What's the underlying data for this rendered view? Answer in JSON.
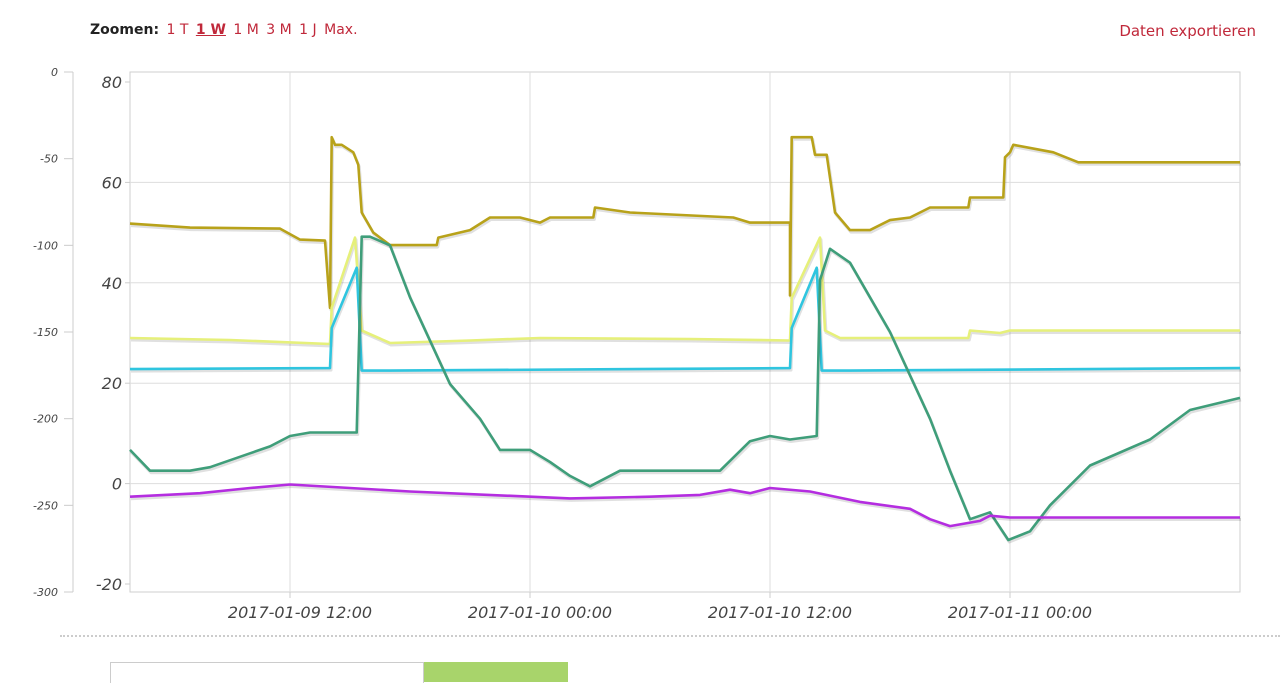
{
  "toolbar": {
    "zoom_label": "Zoomen:",
    "zoom_options": [
      "1 T",
      "1 W",
      "1 M",
      "3 M",
      "1 J",
      "Max."
    ],
    "active_zoom": "1 W",
    "export_label": "Daten exportieren"
  },
  "chart_data": {
    "type": "line",
    "title": "",
    "x_range": [
      "2017-01-09 04:00",
      "2017-01-11 11:30"
    ],
    "x_ticks": [
      "2017-01-09 12:00",
      "2017-01-10 00:00",
      "2017-01-10 12:00",
      "2017-01-11 00:00"
    ],
    "y_left": {
      "range": [
        -20,
        80
      ],
      "ticks": [
        80,
        60,
        40,
        20,
        0,
        -20
      ]
    },
    "y_right": {
      "range": [
        -300,
        0
      ],
      "ticks": [
        0,
        -50,
        -100,
        -150,
        -200,
        -250,
        -300
      ]
    },
    "grid": true,
    "legend": "none",
    "series": [
      {
        "color": "#b8a21a",
        "axis": "left",
        "points": [
          [
            "2017-01-09 04:00",
            51.8
          ],
          [
            "2017-01-09 07:00",
            51.0
          ],
          [
            "2017-01-09 11:30",
            50.8
          ],
          [
            "2017-01-09 12:30",
            48.6
          ],
          [
            "2017-01-09 13:45",
            48.4
          ],
          [
            "2017-01-09 14:00",
            35.0
          ],
          [
            "2017-01-09 14:05",
            69.0
          ],
          [
            "2017-01-09 14:15",
            67.5
          ],
          [
            "2017-01-09 14:35",
            67.5
          ],
          [
            "2017-01-09 15:10",
            66.0
          ],
          [
            "2017-01-09 15:25",
            63.5
          ],
          [
            "2017-01-09 15:35",
            54.0
          ],
          [
            "2017-01-09 16:10",
            50.0
          ],
          [
            "2017-01-09 17:00",
            47.5
          ],
          [
            "2017-01-09 19:20",
            47.5
          ],
          [
            "2017-01-09 19:25",
            49.0
          ],
          [
            "2017-01-09 21:00",
            50.5
          ],
          [
            "2017-01-09 22:00",
            53.0
          ],
          [
            "2017-01-09 23:30",
            53.0
          ],
          [
            "2017-01-10 00:30",
            52.0
          ],
          [
            "2017-01-10 01:00",
            53.0
          ],
          [
            "2017-01-10 03:10",
            53.0
          ],
          [
            "2017-01-10 03:15",
            55.0
          ],
          [
            "2017-01-10 05:00",
            54.0
          ],
          [
            "2017-01-10 10:10",
            53.0
          ],
          [
            "2017-01-10 11:00",
            52.0
          ],
          [
            "2017-01-10 13:00",
            52.0
          ],
          [
            "2017-01-10 13:00",
            37.5
          ],
          [
            "2017-01-10 13:05",
            69.0
          ],
          [
            "2017-01-10 14:05",
            69.0
          ],
          [
            "2017-01-10 14:15",
            65.5
          ],
          [
            "2017-01-10 14:50",
            65.5
          ],
          [
            "2017-01-10 15:15",
            54.0
          ],
          [
            "2017-01-10 16:00",
            50.5
          ],
          [
            "2017-01-10 17:00",
            50.5
          ],
          [
            "2017-01-10 18:00",
            52.5
          ],
          [
            "2017-01-10 19:00",
            53.0
          ],
          [
            "2017-01-10 20:00",
            55.0
          ],
          [
            "2017-01-10 21:55",
            55.0
          ],
          [
            "2017-01-10 22:00",
            57.0
          ],
          [
            "2017-01-10 23:40",
            57.0
          ],
          [
            "2017-01-10 23:45",
            65.0
          ],
          [
            "2017-01-11 00:00",
            66.0
          ],
          [
            "2017-01-11 00:10",
            67.5
          ],
          [
            "2017-01-11 01:30",
            66.5
          ],
          [
            "2017-01-11 02:10",
            66.0
          ],
          [
            "2017-01-11 03:25",
            64.0
          ],
          [
            "2017-01-11 11:30",
            64.0
          ]
        ]
      },
      {
        "color": "#e6f07a",
        "axis": "left",
        "points": [
          [
            "2017-01-09 04:00",
            29.0
          ],
          [
            "2017-01-09 09:00",
            28.6
          ],
          [
            "2017-01-09 14:00",
            27.8
          ],
          [
            "2017-01-09 14:05",
            35.0
          ],
          [
            "2017-01-09 15:15",
            49.0
          ],
          [
            "2017-01-09 15:35",
            30.5
          ],
          [
            "2017-01-09 17:00",
            28.0
          ],
          [
            "2017-01-09 21:00",
            28.5
          ],
          [
            "2017-01-10 00:30",
            29.0
          ],
          [
            "2017-01-10 08:00",
            28.8
          ],
          [
            "2017-01-10 13:00",
            28.5
          ],
          [
            "2017-01-10 13:05",
            37.0
          ],
          [
            "2017-01-10 14:30",
            49.0
          ],
          [
            "2017-01-10 14:45",
            30.5
          ],
          [
            "2017-01-10 15:30",
            29.0
          ],
          [
            "2017-01-10 21:55",
            29.0
          ],
          [
            "2017-01-10 22:00",
            30.5
          ],
          [
            "2017-01-10 23:30",
            30.0
          ],
          [
            "2017-01-11 00:00",
            30.5
          ],
          [
            "2017-01-11 11:30",
            30.5
          ]
        ]
      },
      {
        "color": "#2fc5df",
        "axis": "left",
        "points": [
          [
            "2017-01-09 04:00",
            22.8
          ],
          [
            "2017-01-09 14:00",
            23.0
          ],
          [
            "2017-01-09 14:05",
            31.0
          ],
          [
            "2017-01-09 15:20",
            43.0
          ],
          [
            "2017-01-09 15:35",
            22.5
          ],
          [
            "2017-01-09 17:00",
            22.5
          ],
          [
            "2017-01-10 13:00",
            23.0
          ],
          [
            "2017-01-10 13:05",
            31.0
          ],
          [
            "2017-01-10 14:20",
            43.0
          ],
          [
            "2017-01-10 14:35",
            22.5
          ],
          [
            "2017-01-10 16:00",
            22.5
          ],
          [
            "2017-01-11 11:30",
            23.0
          ]
        ]
      },
      {
        "color": "#3f9e7a",
        "axis": "right",
        "points": [
          [
            "2017-01-09 04:00",
            -218
          ],
          [
            "2017-01-09 05:00",
            -230
          ],
          [
            "2017-01-09 07:00",
            -230
          ],
          [
            "2017-01-09 08:00",
            -228
          ],
          [
            "2017-01-09 10:00",
            -220
          ],
          [
            "2017-01-09 11:00",
            -216
          ],
          [
            "2017-01-09 12:00",
            -210
          ],
          [
            "2017-01-09 13:00",
            -208
          ],
          [
            "2017-01-09 15:20",
            -208
          ],
          [
            "2017-01-09 15:35",
            -95
          ],
          [
            "2017-01-09 16:00",
            -95
          ],
          [
            "2017-01-09 17:00",
            -100
          ],
          [
            "2017-01-09 18:00",
            -130
          ],
          [
            "2017-01-09 20:00",
            -180
          ],
          [
            "2017-01-09 21:30",
            -200
          ],
          [
            "2017-01-09 22:30",
            -218
          ],
          [
            "2017-01-10 00:00",
            -218
          ],
          [
            "2017-01-10 01:00",
            -225
          ],
          [
            "2017-01-10 02:00",
            -233
          ],
          [
            "2017-01-10 03:00",
            -239
          ],
          [
            "2017-01-10 04:30",
            -230
          ],
          [
            "2017-01-10 09:30",
            -230
          ],
          [
            "2017-01-10 11:00",
            -213
          ],
          [
            "2017-01-10 12:00",
            -210
          ],
          [
            "2017-01-10 13:00",
            -212
          ],
          [
            "2017-01-10 14:20",
            -210
          ],
          [
            "2017-01-10 14:30",
            -120
          ],
          [
            "2017-01-10 15:00",
            -102
          ],
          [
            "2017-01-10 16:00",
            -110
          ],
          [
            "2017-01-10 18:00",
            -150
          ],
          [
            "2017-01-10 20:00",
            -200
          ],
          [
            "2017-01-10 21:00",
            -230
          ],
          [
            "2017-01-10 22:00",
            -258
          ],
          [
            "2017-01-10 23:00",
            -254
          ],
          [
            "2017-01-10 23:55",
            -270
          ],
          [
            "2017-01-11 01:00",
            -265
          ],
          [
            "2017-01-11 02:00",
            -250
          ],
          [
            "2017-01-11 04:00",
            -227
          ],
          [
            "2017-01-11 07:00",
            -212
          ],
          [
            "2017-01-11 09:00",
            -195
          ],
          [
            "2017-01-11 11:30",
            -188
          ]
        ]
      },
      {
        "color": "#b42de0",
        "axis": "right",
        "points": [
          [
            "2017-01-09 04:00",
            -245
          ],
          [
            "2017-01-09 07:30",
            -243
          ],
          [
            "2017-01-09 10:00",
            -240
          ],
          [
            "2017-01-09 12:00",
            -238
          ],
          [
            "2017-01-09 15:00",
            -240
          ],
          [
            "2017-01-09 18:00",
            -242
          ],
          [
            "2017-01-10 02:00",
            -246
          ],
          [
            "2017-01-10 06:00",
            -245
          ],
          [
            "2017-01-10 08:30",
            -244
          ],
          [
            "2017-01-10 10:00",
            -241
          ],
          [
            "2017-01-10 11:00",
            -243
          ],
          [
            "2017-01-10 12:00",
            -240
          ],
          [
            "2017-01-10 14:00",
            -242
          ],
          [
            "2017-01-10 16:30",
            -248
          ],
          [
            "2017-01-10 19:00",
            -252
          ],
          [
            "2017-01-10 20:00",
            -258
          ],
          [
            "2017-01-10 21:00",
            -262
          ],
          [
            "2017-01-10 22:30",
            -259
          ],
          [
            "2017-01-10 23:00",
            -256
          ],
          [
            "2017-01-11 00:00",
            -257
          ],
          [
            "2017-01-11 11:30",
            -257
          ]
        ]
      }
    ]
  }
}
